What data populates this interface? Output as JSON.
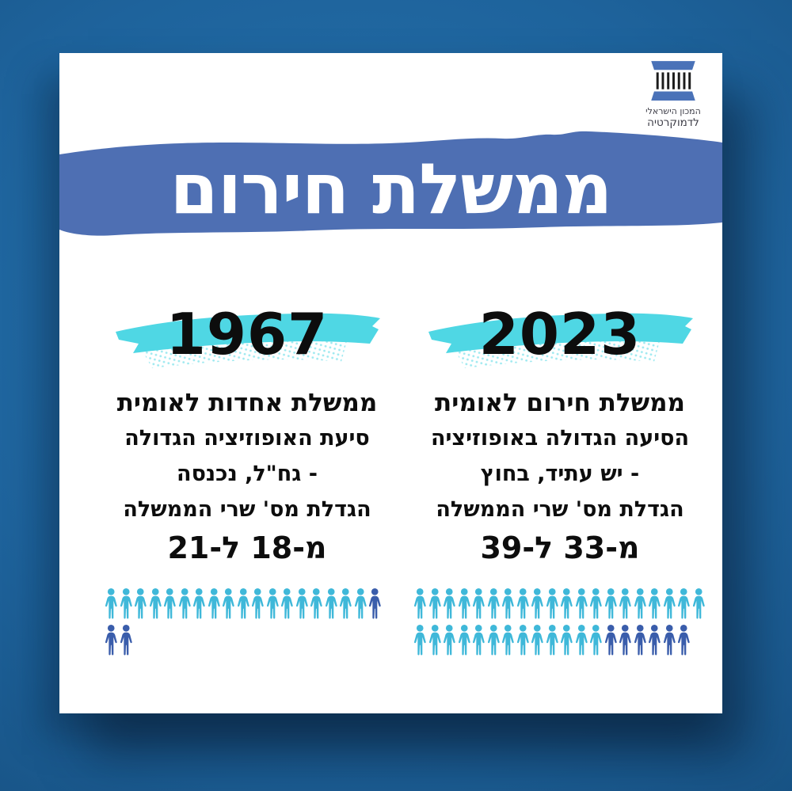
{
  "title": "ממשלת חירום",
  "logo": {
    "line1": "המכון הישראלי",
    "line2": "לדמוקרטיה"
  },
  "columns": [
    {
      "year": "1967",
      "heading": "ממשלת אחדות לאומית",
      "body": "סיעת האופוזיציה הגדולה\n- גח\"ל, נכנסה\nהגדלת מס' שרי הממשלה",
      "numbers": "מ-18 ל-21",
      "people": {
        "rows": [
          [
            {
              "color": "light",
              "count": 18
            },
            {
              "color": "dark",
              "count": 1
            }
          ],
          [
            {
              "color": "dark",
              "count": 2
            }
          ]
        ]
      }
    },
    {
      "year": "2023",
      "heading": "ממשלת חירום לאומית",
      "body": "הסיעה הגדולה באופוזיציה\n- יש עתיד, בחוץ\nהגדלת מס' שרי הממשלה",
      "numbers": "מ-33 ל-39",
      "people": {
        "rows": [
          [
            {
              "color": "light",
              "count": 20
            }
          ],
          [
            {
              "color": "light",
              "count": 13
            },
            {
              "color": "dark",
              "count": 6
            }
          ]
        ]
      }
    }
  ],
  "chart_data": {
    "type": "pictograph",
    "title": "ממשלת חירום",
    "categories": [
      "1967",
      "2023"
    ],
    "series": [
      {
        "name": "1967",
        "ministers_before": 18,
        "ministers_after": 21,
        "added_ministers": 3,
        "icons_light": 18,
        "icons_dark": 3
      },
      {
        "name": "2023",
        "ministers_before": 33,
        "ministers_after": 39,
        "added_ministers": 6,
        "icons_light": 33,
        "icons_dark": 6
      }
    ],
    "annotations": [
      "מ-18 ל-21",
      "מ-33 ל-39"
    ]
  },
  "colors": {
    "background": "#1e639c",
    "banner": "#4e6fb3",
    "highlight": "#4fd7e4",
    "person_light": "#3fb8d9",
    "person_dark": "#3a5dab",
    "logo_blue": "#4a72b8",
    "year_text": "#0d0d0d",
    "title_text": "#ffffff"
  }
}
